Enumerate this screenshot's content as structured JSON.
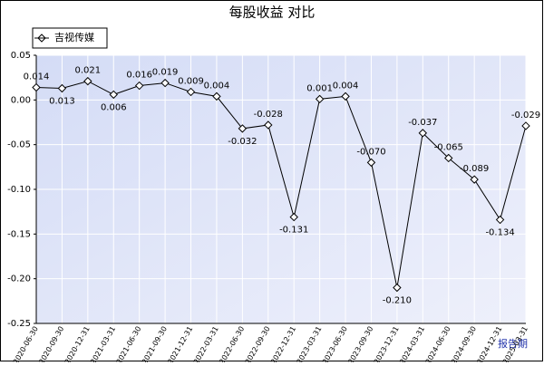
{
  "chart_data": {
    "type": "line",
    "title": "每股收益 对比",
    "x_label": "报告期",
    "categories": [
      "2020-06-30",
      "2020-09-30",
      "2020-12-31",
      "2021-03-31",
      "2021-06-30",
      "2021-09-30",
      "2021-12-31",
      "2022-03-31",
      "2022-06-30",
      "2022-09-30",
      "2022-12-31",
      "2023-03-31",
      "2023-06-30",
      "2023-09-30",
      "2023-12-31",
      "2024-03-31",
      "2024-06-30",
      "2024-09-30",
      "2024-12-31",
      "2025-03-31"
    ],
    "series": [
      {
        "name": "吉视传媒",
        "color": "#000000",
        "values": [
          0.014,
          0.013,
          0.021,
          0.006,
          0.016,
          0.019,
          0.009,
          0.004,
          -0.032,
          -0.028,
          -0.131,
          0.001,
          0.004,
          -0.07,
          -0.21,
          -0.037,
          -0.065,
          -0.089,
          -0.134,
          -0.029
        ],
        "value_labels": [
          "0.014",
          "0.013",
          "0.021",
          "0.006",
          "0.016",
          "0.019",
          "0.009",
          "0.004",
          "-0.032",
          "-0.028",
          "-0.131",
          "0.001",
          "0.004",
          "-0.070",
          "-0.210",
          "-0.037",
          "-0.065",
          "-0.089",
          "-0.134",
          "-0.029"
        ]
      }
    ],
    "ylim": [
      -0.25,
      0.05
    ],
    "yticks": [
      0.05,
      {
        "value": 0,
        "label": "0.00"
      },
      -0.05,
      {
        "value": -0.1,
        "label": "-0.10"
      },
      -0.15,
      {
        "value": -0.2,
        "label": "-0.20"
      },
      -0.25
    ],
    "grid": true,
    "legend": "top-left"
  }
}
